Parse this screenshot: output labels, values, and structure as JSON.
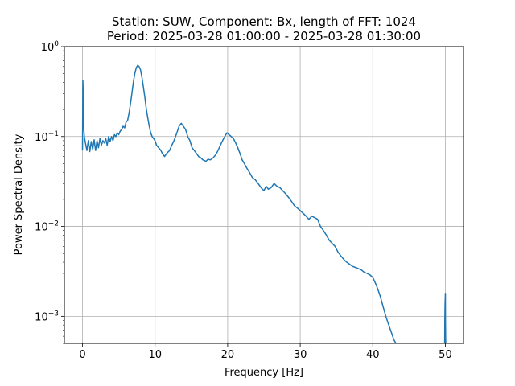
{
  "chart_data": {
    "type": "line",
    "title": "Station: SUW, Component: Bx, length of FFT: 1024",
    "subtitle": "Period: 2025-03-28 01:00:00 - 2025-03-28 01:30:00",
    "xlabel": "Frequency [Hz]",
    "ylabel": "Power Spectral Density",
    "yscale": "log",
    "grid": true,
    "xlim": [
      -2.5,
      52.5
    ],
    "ylim": [
      0.0005,
      1.0
    ],
    "x_ticks": [
      0,
      10,
      20,
      30,
      40,
      50
    ],
    "y_ticks": [
      {
        "value": 0.001,
        "base": "10",
        "exp": "−3"
      },
      {
        "value": 0.01,
        "base": "10",
        "exp": "−2"
      },
      {
        "value": 0.1,
        "base": "10",
        "exp": "−1"
      },
      {
        "value": 1.0,
        "base": "10",
        "exp": "0"
      }
    ],
    "line_color": "#1f77b4",
    "series": [
      {
        "x": [
          0.0,
          0.05,
          0.1,
          0.15,
          0.25,
          0.4,
          0.6,
          0.8,
          1.0,
          1.2,
          1.4,
          1.6,
          1.8,
          2.0,
          2.2,
          2.4,
          2.6,
          2.8,
          3.0,
          3.2,
          3.4,
          3.6,
          3.8,
          4.0,
          4.2,
          4.4,
          4.6,
          4.8,
          5.0,
          5.2,
          5.4,
          5.6,
          5.8,
          6.0,
          6.2,
          6.4,
          6.6,
          6.8,
          7.0,
          7.2,
          7.4,
          7.6,
          7.8,
          8.0,
          8.2,
          8.4,
          8.6,
          8.8,
          9.0,
          9.2,
          9.4,
          9.6,
          9.8,
          10.0,
          10.2,
          10.5,
          10.8,
          11.0,
          11.3,
          11.6,
          12.0,
          12.3,
          12.6,
          13.0,
          13.3,
          13.6,
          13.9,
          14.2,
          14.5,
          14.8,
          15.1,
          15.4,
          15.7,
          16.0,
          16.3,
          16.6,
          17.0,
          17.3,
          17.6,
          18.0,
          18.3,
          18.6,
          19.0,
          19.3,
          19.6,
          19.9,
          20.2,
          20.5,
          20.8,
          21.1,
          21.4,
          21.7,
          22.0,
          22.3,
          22.6,
          23.0,
          23.4,
          23.8,
          24.2,
          24.6,
          25.0,
          25.3,
          25.6,
          26.0,
          26.4,
          26.8,
          27.2,
          27.6,
          28.0,
          28.4,
          28.8,
          29.2,
          29.6,
          30.0,
          30.4,
          30.8,
          31.2,
          31.6,
          32.0,
          32.4,
          32.8,
          33.2,
          33.6,
          34.0,
          34.4,
          34.8,
          35.2,
          35.6,
          36.0,
          36.4,
          36.8,
          37.2,
          37.6,
          38.0,
          38.4,
          38.8,
          39.2,
          39.6,
          40.0,
          40.3,
          40.6,
          41.0,
          41.4,
          41.8,
          42.2,
          42.6,
          42.9,
          43.2,
          49.9,
          49.93,
          49.96,
          50.0,
          50.02,
          50.05
        ],
        "y": [
          0.07,
          0.42,
          0.3,
          0.13,
          0.1,
          0.085,
          0.07,
          0.09,
          0.068,
          0.088,
          0.072,
          0.092,
          0.07,
          0.09,
          0.075,
          0.095,
          0.08,
          0.09,
          0.085,
          0.095,
          0.08,
          0.1,
          0.088,
          0.1,
          0.09,
          0.105,
          0.1,
          0.11,
          0.105,
          0.115,
          0.12,
          0.13,
          0.125,
          0.145,
          0.15,
          0.18,
          0.23,
          0.3,
          0.4,
          0.5,
          0.58,
          0.62,
          0.6,
          0.55,
          0.45,
          0.35,
          0.27,
          0.2,
          0.16,
          0.13,
          0.11,
          0.1,
          0.095,
          0.09,
          0.08,
          0.075,
          0.07,
          0.065,
          0.06,
          0.065,
          0.07,
          0.08,
          0.09,
          0.11,
          0.13,
          0.14,
          0.13,
          0.12,
          0.1,
          0.09,
          0.075,
          0.07,
          0.065,
          0.06,
          0.058,
          0.055,
          0.053,
          0.056,
          0.055,
          0.058,
          0.062,
          0.068,
          0.08,
          0.09,
          0.1,
          0.11,
          0.105,
          0.1,
          0.095,
          0.085,
          0.075,
          0.065,
          0.055,
          0.05,
          0.045,
          0.04,
          0.035,
          0.033,
          0.03,
          0.027,
          0.025,
          0.028,
          0.026,
          0.027,
          0.03,
          0.028,
          0.027,
          0.025,
          0.023,
          0.021,
          0.019,
          0.017,
          0.016,
          0.015,
          0.014,
          0.013,
          0.012,
          0.013,
          0.0125,
          0.012,
          0.01,
          0.009,
          0.008,
          0.007,
          0.0065,
          0.006,
          0.0052,
          0.0047,
          0.0043,
          0.004,
          0.0038,
          0.0036,
          0.0035,
          0.0034,
          0.0033,
          0.0031,
          0.003,
          0.0029,
          0.0027,
          0.0024,
          0.0021,
          0.0017,
          0.0013,
          0.001,
          0.0008,
          0.00065,
          0.00055,
          0.0005,
          0.0005,
          0.0009,
          0.0014,
          0.0018,
          0.0009,
          0.0005
        ]
      }
    ]
  }
}
